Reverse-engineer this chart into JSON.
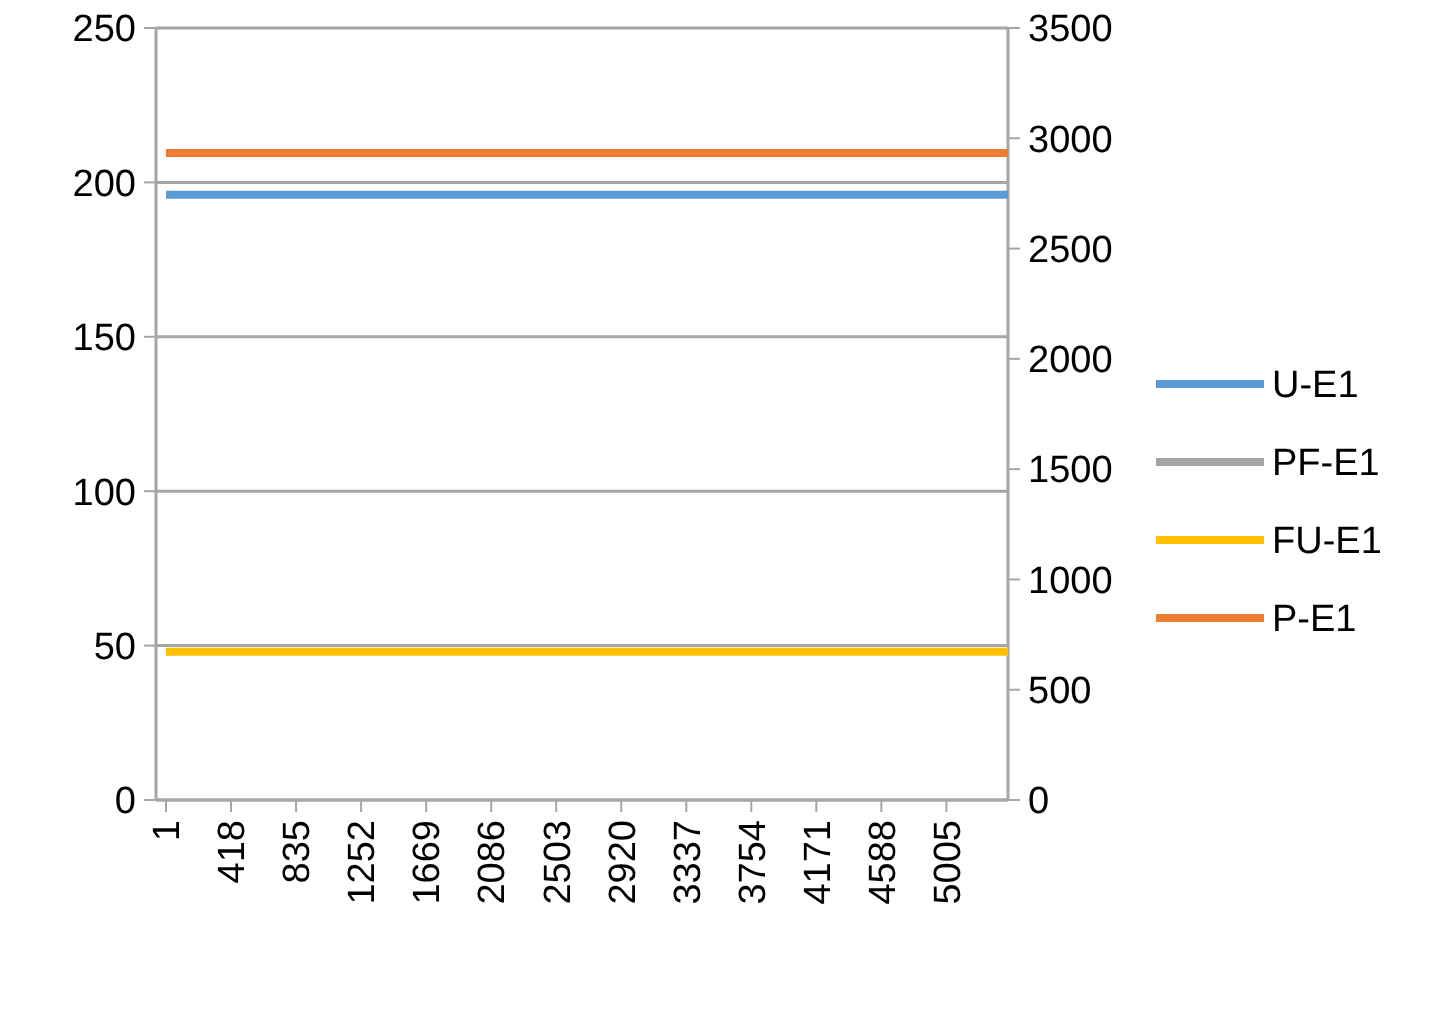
{
  "chart_data": {
    "type": "line",
    "x": [
      1,
      5400
    ],
    "xlim": [
      1,
      5400
    ],
    "xticks": [
      1,
      418,
      835,
      1252,
      1669,
      2086,
      2503,
      2920,
      3337,
      3754,
      4171,
      4588,
      5005
    ],
    "ylim": [
      0,
      250
    ],
    "yticks": [
      0,
      50,
      100,
      150,
      200,
      250
    ],
    "y2lim": [
      0,
      3500
    ],
    "y2ticks": [
      0,
      500,
      1000,
      1500,
      2000,
      2500,
      3000,
      3500
    ],
    "grid": "y",
    "legend": "right",
    "marker": "none",
    "line_style": "solid",
    "series": [
      {
        "name": "U-E1",
        "color": "#5b9bd5",
        "values": [
          196,
          196
        ]
      },
      {
        "name": "PF-E1",
        "color": "#a5a5a5",
        "values": [
          null,
          null
        ]
      },
      {
        "name": "FU-E1",
        "color": "#ffc000",
        "values": [
          48,
          48
        ]
      },
      {
        "name": "P-E1",
        "color": "#ed7d31",
        "values": [
          209.5,
          209.5
        ]
      }
    ]
  }
}
